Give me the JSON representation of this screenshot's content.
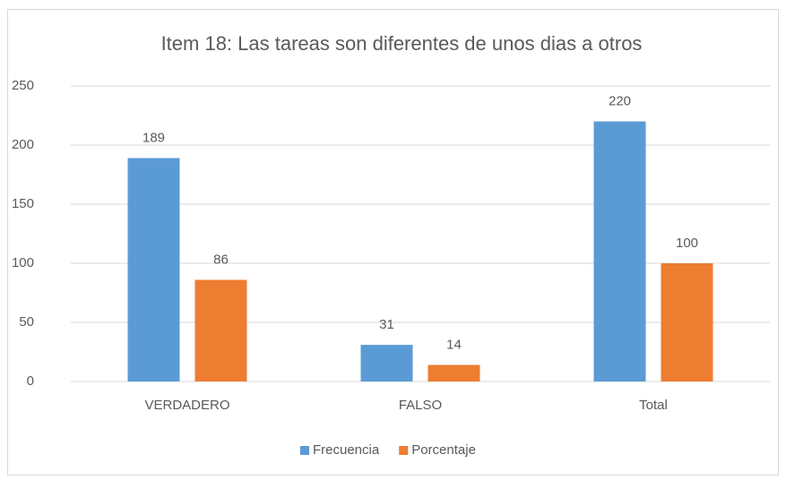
{
  "chart_data": {
    "type": "bar",
    "title": "Item 18: Las tareas son diferentes de unos dias a otros",
    "categories": [
      "VERDADERO",
      "FALSO",
      "Total"
    ],
    "series": [
      {
        "name": "Frecuencia",
        "color": "#5b9bd5",
        "values": [
          189,
          31,
          220
        ]
      },
      {
        "name": "Porcentaje",
        "color": "#ed7d31",
        "values": [
          86,
          14,
          100
        ]
      }
    ],
    "ylim": [
      0,
      250
    ],
    "yticks": [
      0,
      50,
      100,
      150,
      200,
      250
    ],
    "grid": true,
    "legend": "bottom"
  }
}
